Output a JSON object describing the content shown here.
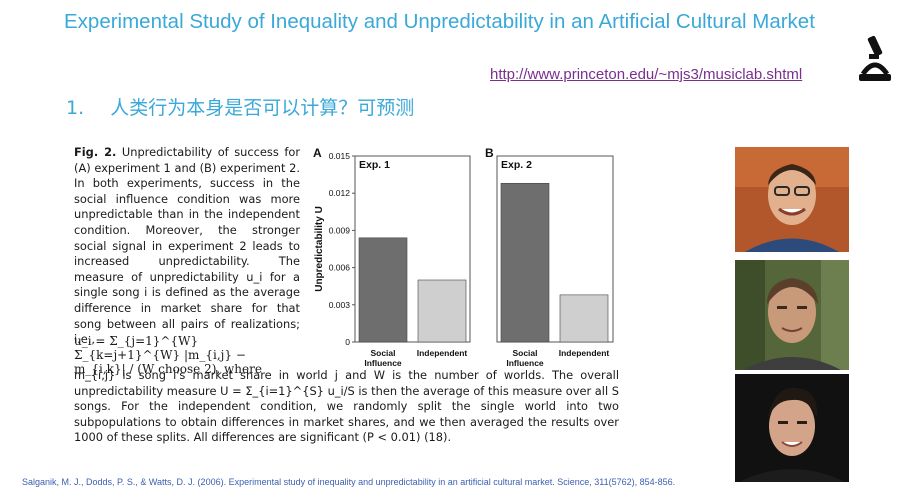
{
  "slide": {
    "title": "Experimental Study of Inequality and Unpredictability in an Artificial Cultural Market",
    "url": "http://www.princeton.edu/~mjs3/musiclab.shtml",
    "point_number": "1.",
    "point_text": "人类行为本身是否可以计算？可预测",
    "reference": "Salganik, M. J., Dodds, P. S., & Watts, D. J. (2006). Experimental study of inequality and unpredictability in an artificial cultural market. Science, 311(5762), 854-856.",
    "icon": "microscope-icon",
    "colors": {
      "title": "#3aa8d8",
      "url": "#7a2f8f",
      "reference": "#3a5fb0"
    }
  },
  "figure": {
    "caption_label": "Fig. 2.",
    "caption_text": "Unpredictability of success for (A) experiment 1 and (B) experiment 2. In both experiments, success in the social influence condition was more unpredictable than in the independent condition. Moreover, the stronger social signal in experiment 2 leads to increased unpredictability. The measure of unpredictability u_i for a single song i is defined as the average difference in market share for that song between all pairs of realizations; i.e.,",
    "formula_text": "u_i = Σ_{j=1}^{W} Σ_{k=j+1}^{W} |m_{i,j} − m_{i,k}| / (W choose 2),  where",
    "continuation_1": "m_{i,j} is song i's market share in world j",
    "continuation_2": "and W is the number of worlds. The overall unpredictability measure U = Σ_{i=1}^{S} u_i/S is then the average of this measure over all S songs. For the independent condition, we randomly split the single world into two subpopulations to obtain differences in market shares, and we then averaged the results over 1000 of these splits. All differences are significant (P < 0.01) (18)."
  },
  "chart_data": {
    "type": "bar",
    "ylabel": "Unpredictability U",
    "ylim": [
      0,
      0.015
    ],
    "yticks": [
      "0",
      "0.003",
      "0.006",
      "0.009",
      "0.012",
      "0.015"
    ],
    "panels": [
      {
        "letter": "A",
        "title": "Exp. 1",
        "categories": [
          "Social Influence",
          "Independent"
        ],
        "values": [
          0.0084,
          0.005
        ]
      },
      {
        "letter": "B",
        "title": "Exp. 2",
        "categories": [
          "Social Influence",
          "Independent"
        ],
        "values": [
          0.0128,
          0.0038
        ]
      }
    ],
    "bar_colors": [
      "#6e6e6e",
      "#cfcfcf"
    ]
  }
}
